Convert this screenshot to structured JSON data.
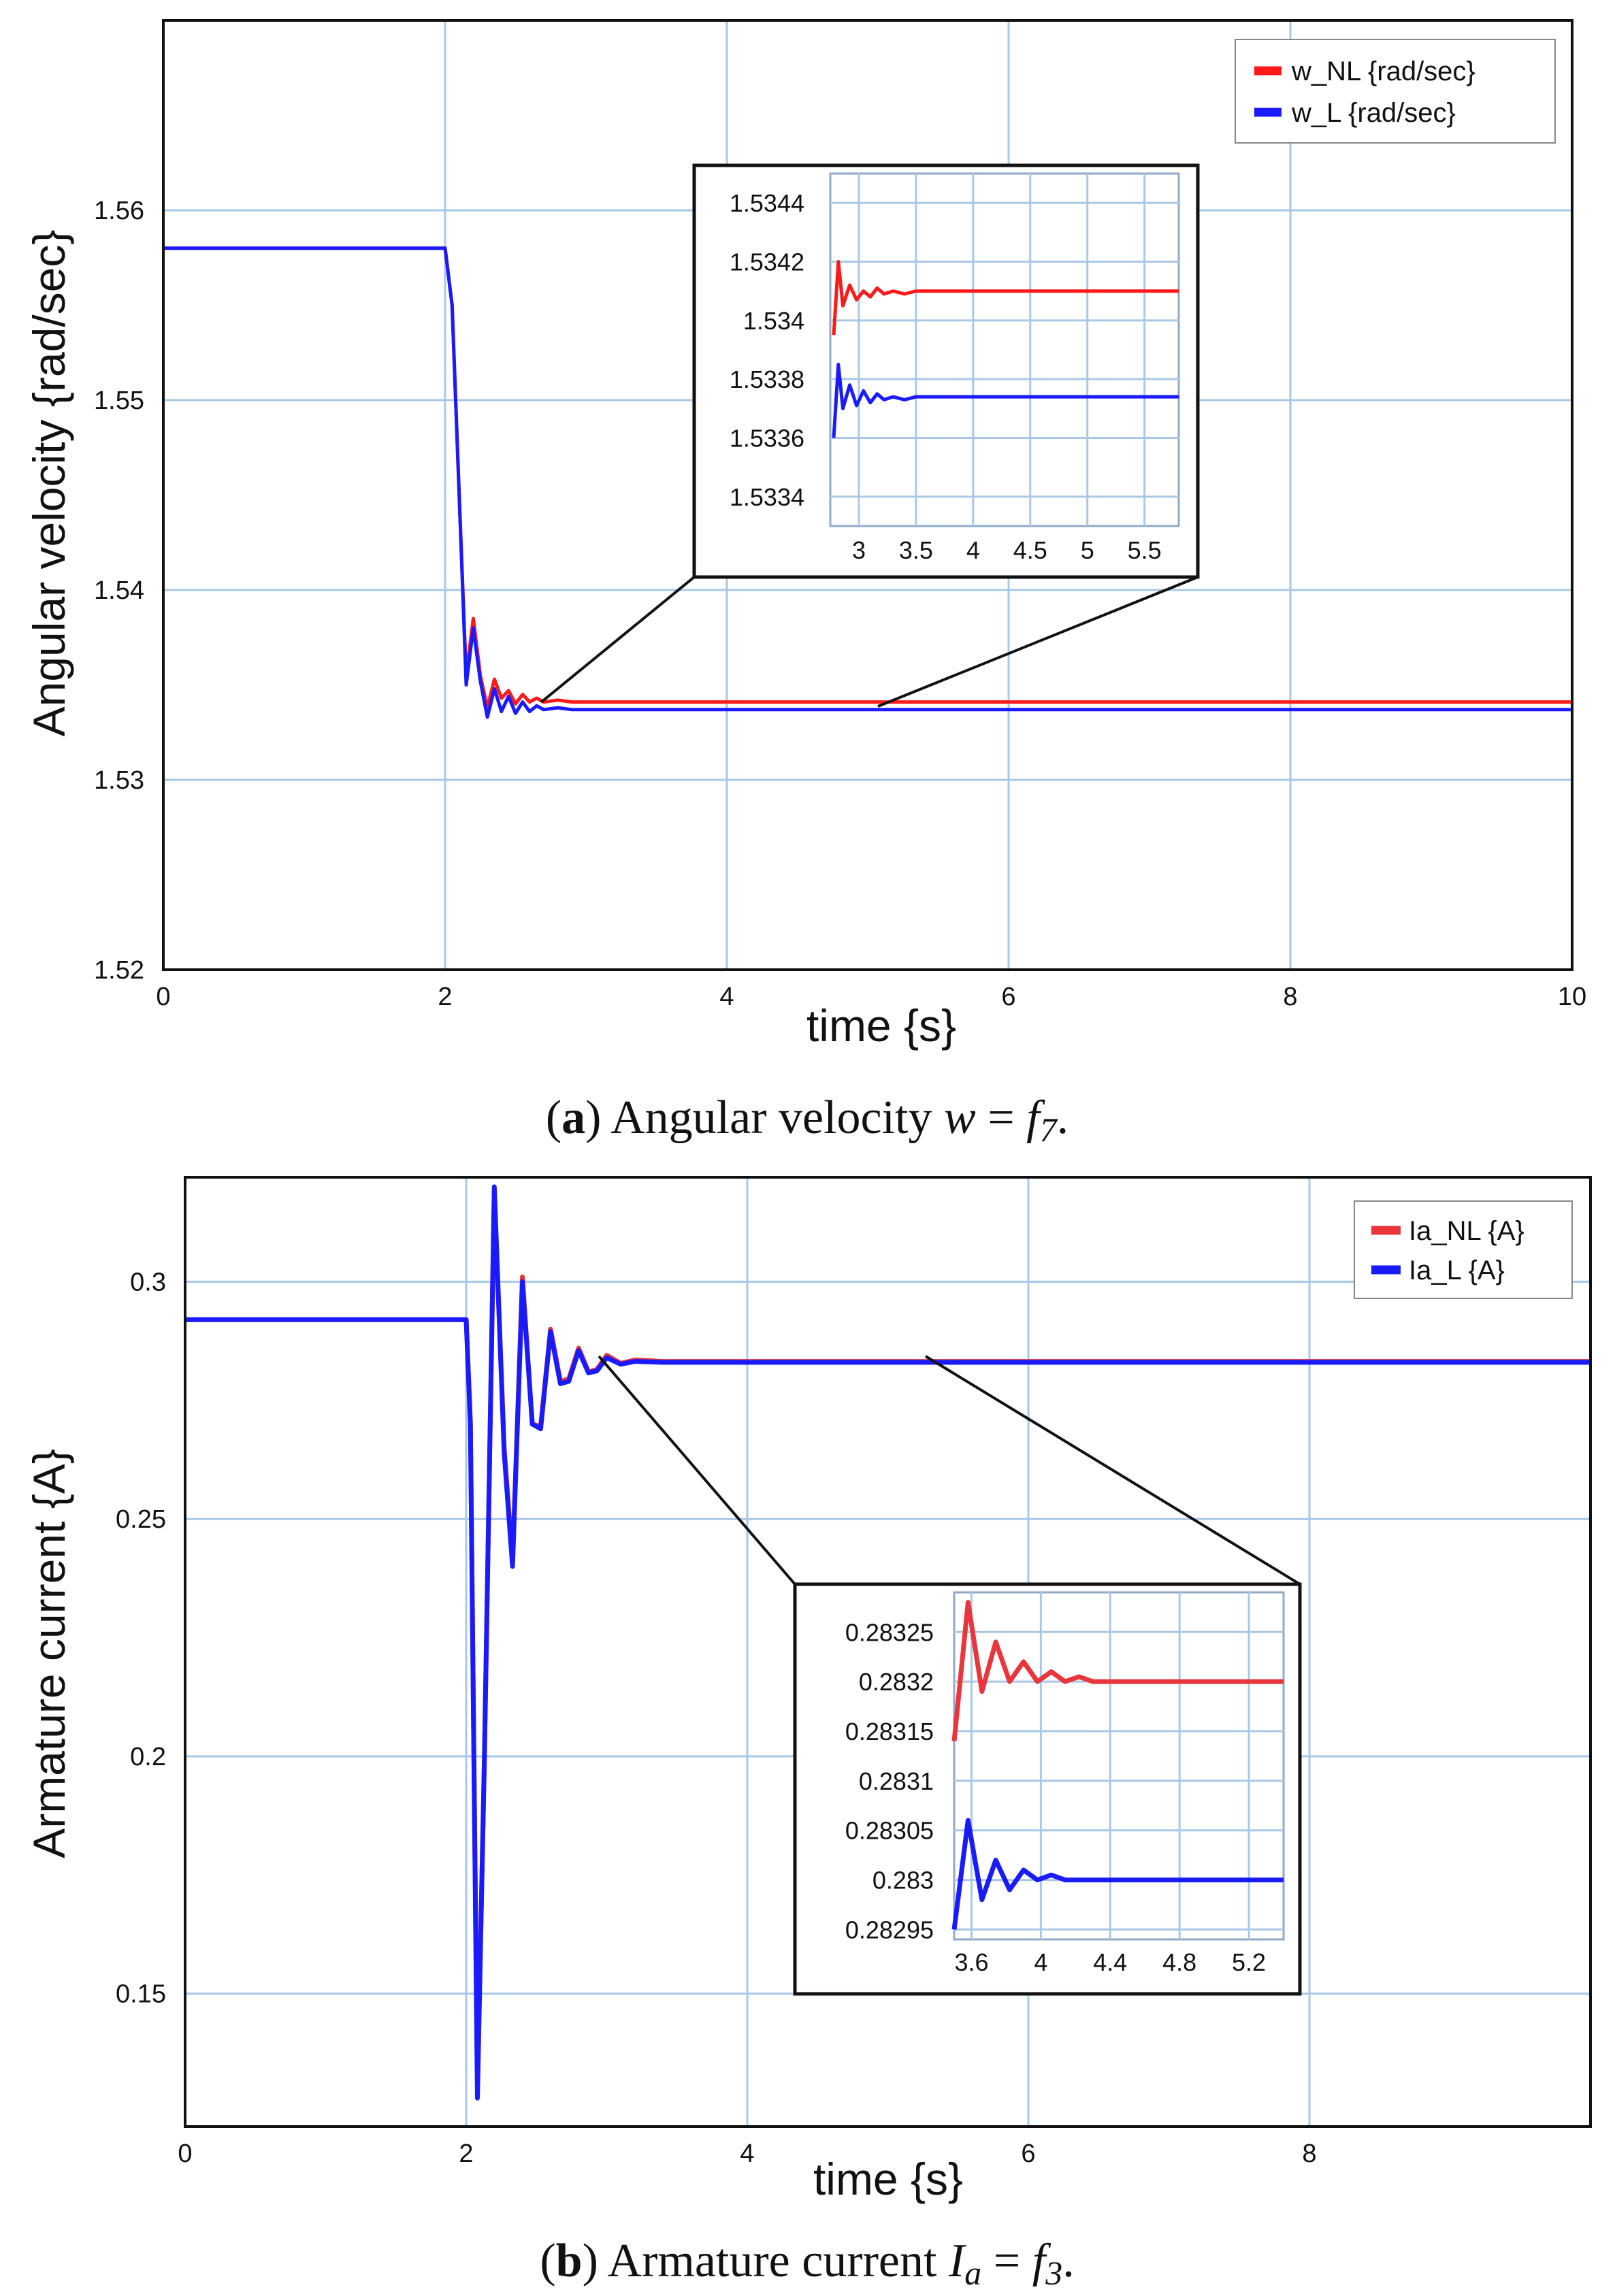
{
  "chart_data": [
    {
      "type": "line",
      "panel": "a",
      "xlabel": "time {s}",
      "ylabel": "Angular velocity {rad/sec}",
      "xlim": [
        0,
        10
      ],
      "ylim": [
        1.52,
        1.57
      ],
      "xticks": [
        "0",
        "2",
        "4",
        "6",
        "8",
        "10"
      ],
      "yticks": [
        "1.52",
        "1.53",
        "1.54",
        "1.55",
        "1.56"
      ],
      "grid": true,
      "legend_position": "top-right",
      "series": [
        {
          "name": "w_NL  {rad/sec}",
          "color": "#ff1a1a",
          "x": [
            0,
            2.0,
            2.05,
            2.1,
            2.15,
            2.2,
            2.25,
            2.3,
            2.35,
            2.4,
            2.45,
            2.5,
            2.55,
            2.6,
            2.65,
            2.7,
            2.8,
            2.9,
            3.0,
            10
          ],
          "y": [
            1.558,
            1.558,
            1.555,
            1.545,
            1.5355,
            1.5385,
            1.5355,
            1.5338,
            1.5353,
            1.5343,
            1.5347,
            1.534,
            1.5345,
            1.5341,
            1.5343,
            1.5341,
            1.5342,
            1.5341,
            1.5341,
            1.5341
          ]
        },
        {
          "name": "w_L {rad/sec}",
          "color": "#1a1aff",
          "x": [
            0,
            2.0,
            2.05,
            2.1,
            2.15,
            2.2,
            2.25,
            2.3,
            2.35,
            2.4,
            2.45,
            2.5,
            2.55,
            2.6,
            2.65,
            2.7,
            2.8,
            2.9,
            3.0,
            3.2,
            10
          ],
          "y": [
            1.558,
            1.558,
            1.555,
            1.545,
            1.535,
            1.538,
            1.5352,
            1.5333,
            1.5348,
            1.5336,
            1.5344,
            1.5335,
            1.5341,
            1.5336,
            1.5339,
            1.5337,
            1.5338,
            1.5337,
            1.5337,
            1.5337,
            1.5337
          ]
        }
      ],
      "inset": {
        "xlim": [
          2.75,
          5.8
        ],
        "ylim": [
          1.5333,
          1.5345
        ],
        "xticks": [
          "3",
          "3.5",
          "4",
          "4.5",
          "5",
          "5.5"
        ],
        "yticks": [
          "1.5344",
          "1.5342",
          "1.534",
          "1.5338",
          "1.5336",
          "1.5334"
        ],
        "series": [
          {
            "name": "w_NL",
            "color": "#ff1a1a",
            "x": [
              2.78,
              2.82,
              2.86,
              2.92,
              2.98,
              3.04,
              3.1,
              3.16,
              3.22,
              3.3,
              3.4,
              3.5,
              5.8
            ],
            "y": [
              1.53395,
              1.5342,
              1.53405,
              1.53412,
              1.53407,
              1.5341,
              1.53408,
              1.53411,
              1.53409,
              1.5341,
              1.53409,
              1.5341,
              1.5341
            ]
          },
          {
            "name": "w_L",
            "color": "#1a1aff",
            "x": [
              2.78,
              2.82,
              2.86,
              2.92,
              2.98,
              3.04,
              3.1,
              3.16,
              3.22,
              3.3,
              3.4,
              3.5,
              5.8
            ],
            "y": [
              1.5336,
              1.53385,
              1.5337,
              1.53378,
              1.53371,
              1.53376,
              1.53372,
              1.53375,
              1.53373,
              1.53374,
              1.53373,
              1.53374,
              1.53374
            ]
          }
        ]
      }
    },
    {
      "type": "line",
      "panel": "b",
      "xlabel": "time {s}",
      "ylabel": "Armature current {A}",
      "xlim": [
        0,
        10
      ],
      "ylim": [
        0.122,
        0.322
      ],
      "xticks": [
        "0",
        "2",
        "4",
        "6",
        "8"
      ],
      "yticks": [
        "0.15",
        "0.2",
        "0.25",
        "0.3"
      ],
      "grid": true,
      "legend_position": "top-right",
      "series": [
        {
          "name": "Ia_NL {A}",
          "color": "#e8363c",
          "x": [
            0,
            2.0,
            2.03,
            2.08,
            2.13,
            2.2,
            2.27,
            2.33,
            2.4,
            2.47,
            2.53,
            2.6,
            2.67,
            2.73,
            2.8,
            2.87,
            2.93,
            3.0,
            3.1,
            3.2,
            3.4,
            10
          ],
          "y": [
            0.292,
            0.292,
            0.27,
            0.13,
            0.2,
            0.319,
            0.265,
            0.241,
            0.301,
            0.27,
            0.2695,
            0.29,
            0.279,
            0.2795,
            0.286,
            0.281,
            0.2815,
            0.2845,
            0.2828,
            0.2835,
            0.2832,
            0.2832
          ]
        },
        {
          "name": "Ia_L  {A}",
          "color": "#1a1aff",
          "x": [
            0,
            2.0,
            2.03,
            2.08,
            2.13,
            2.2,
            2.27,
            2.33,
            2.4,
            2.47,
            2.53,
            2.6,
            2.67,
            2.73,
            2.8,
            2.87,
            2.93,
            3.0,
            3.1,
            3.2,
            3.4,
            10
          ],
          "y": [
            0.292,
            0.292,
            0.27,
            0.128,
            0.2,
            0.32,
            0.264,
            0.24,
            0.3,
            0.27,
            0.269,
            0.2895,
            0.2785,
            0.279,
            0.2855,
            0.2808,
            0.2812,
            0.284,
            0.2826,
            0.2832,
            0.283,
            0.283
          ]
        }
      ],
      "inset": {
        "xlim": [
          3.5,
          5.4
        ],
        "ylim": [
          0.28294,
          0.28329
        ],
        "xticks": [
          "3.6",
          "4",
          "4.4",
          "4.8",
          "5.2"
        ],
        "yticks": [
          "0.28325",
          "0.2832",
          "0.28315",
          "0.2831",
          "0.28305",
          "0.283",
          "0.28295"
        ],
        "series": [
          {
            "name": "Ia_NL",
            "color": "#e8363c",
            "x": [
              3.5,
              3.58,
              3.66,
              3.74,
              3.82,
              3.9,
              3.98,
              4.06,
              4.14,
              4.22,
              4.3,
              4.4,
              5.4
            ],
            "y": [
              0.28314,
              0.28328,
              0.28319,
              0.28324,
              0.2832,
              0.28322,
              0.2832,
              0.28321,
              0.2832,
              0.283205,
              0.2832,
              0.2832,
              0.2832
            ]
          },
          {
            "name": "Ia_L",
            "color": "#1a1aff",
            "x": [
              3.5,
              3.58,
              3.66,
              3.74,
              3.82,
              3.9,
              3.98,
              4.06,
              4.14,
              4.22,
              4.3,
              4.4,
              5.4
            ],
            "y": [
              0.28295,
              0.28306,
              0.28298,
              0.28302,
              0.28299,
              0.28301,
              0.283,
              0.283005,
              0.283,
              0.283,
              0.283,
              0.283,
              0.283
            ]
          }
        ]
      }
    }
  ],
  "captions": {
    "a_prefix": "(",
    "a_letter": "a",
    "a_text": ") Angular velocity ",
    "a_math_lhs": "w",
    "a_math_eq": " = ",
    "a_math_f": "f",
    "a_math_sub": "7",
    "a_end": ".",
    "b_prefix": "(",
    "b_letter": "b",
    "b_text": ") Armature current ",
    "b_math_lhs": "I",
    "b_math_lhs_sub": "a",
    "b_math_eq": " = ",
    "b_math_f": "f",
    "b_math_sub": "3",
    "b_end": "."
  }
}
